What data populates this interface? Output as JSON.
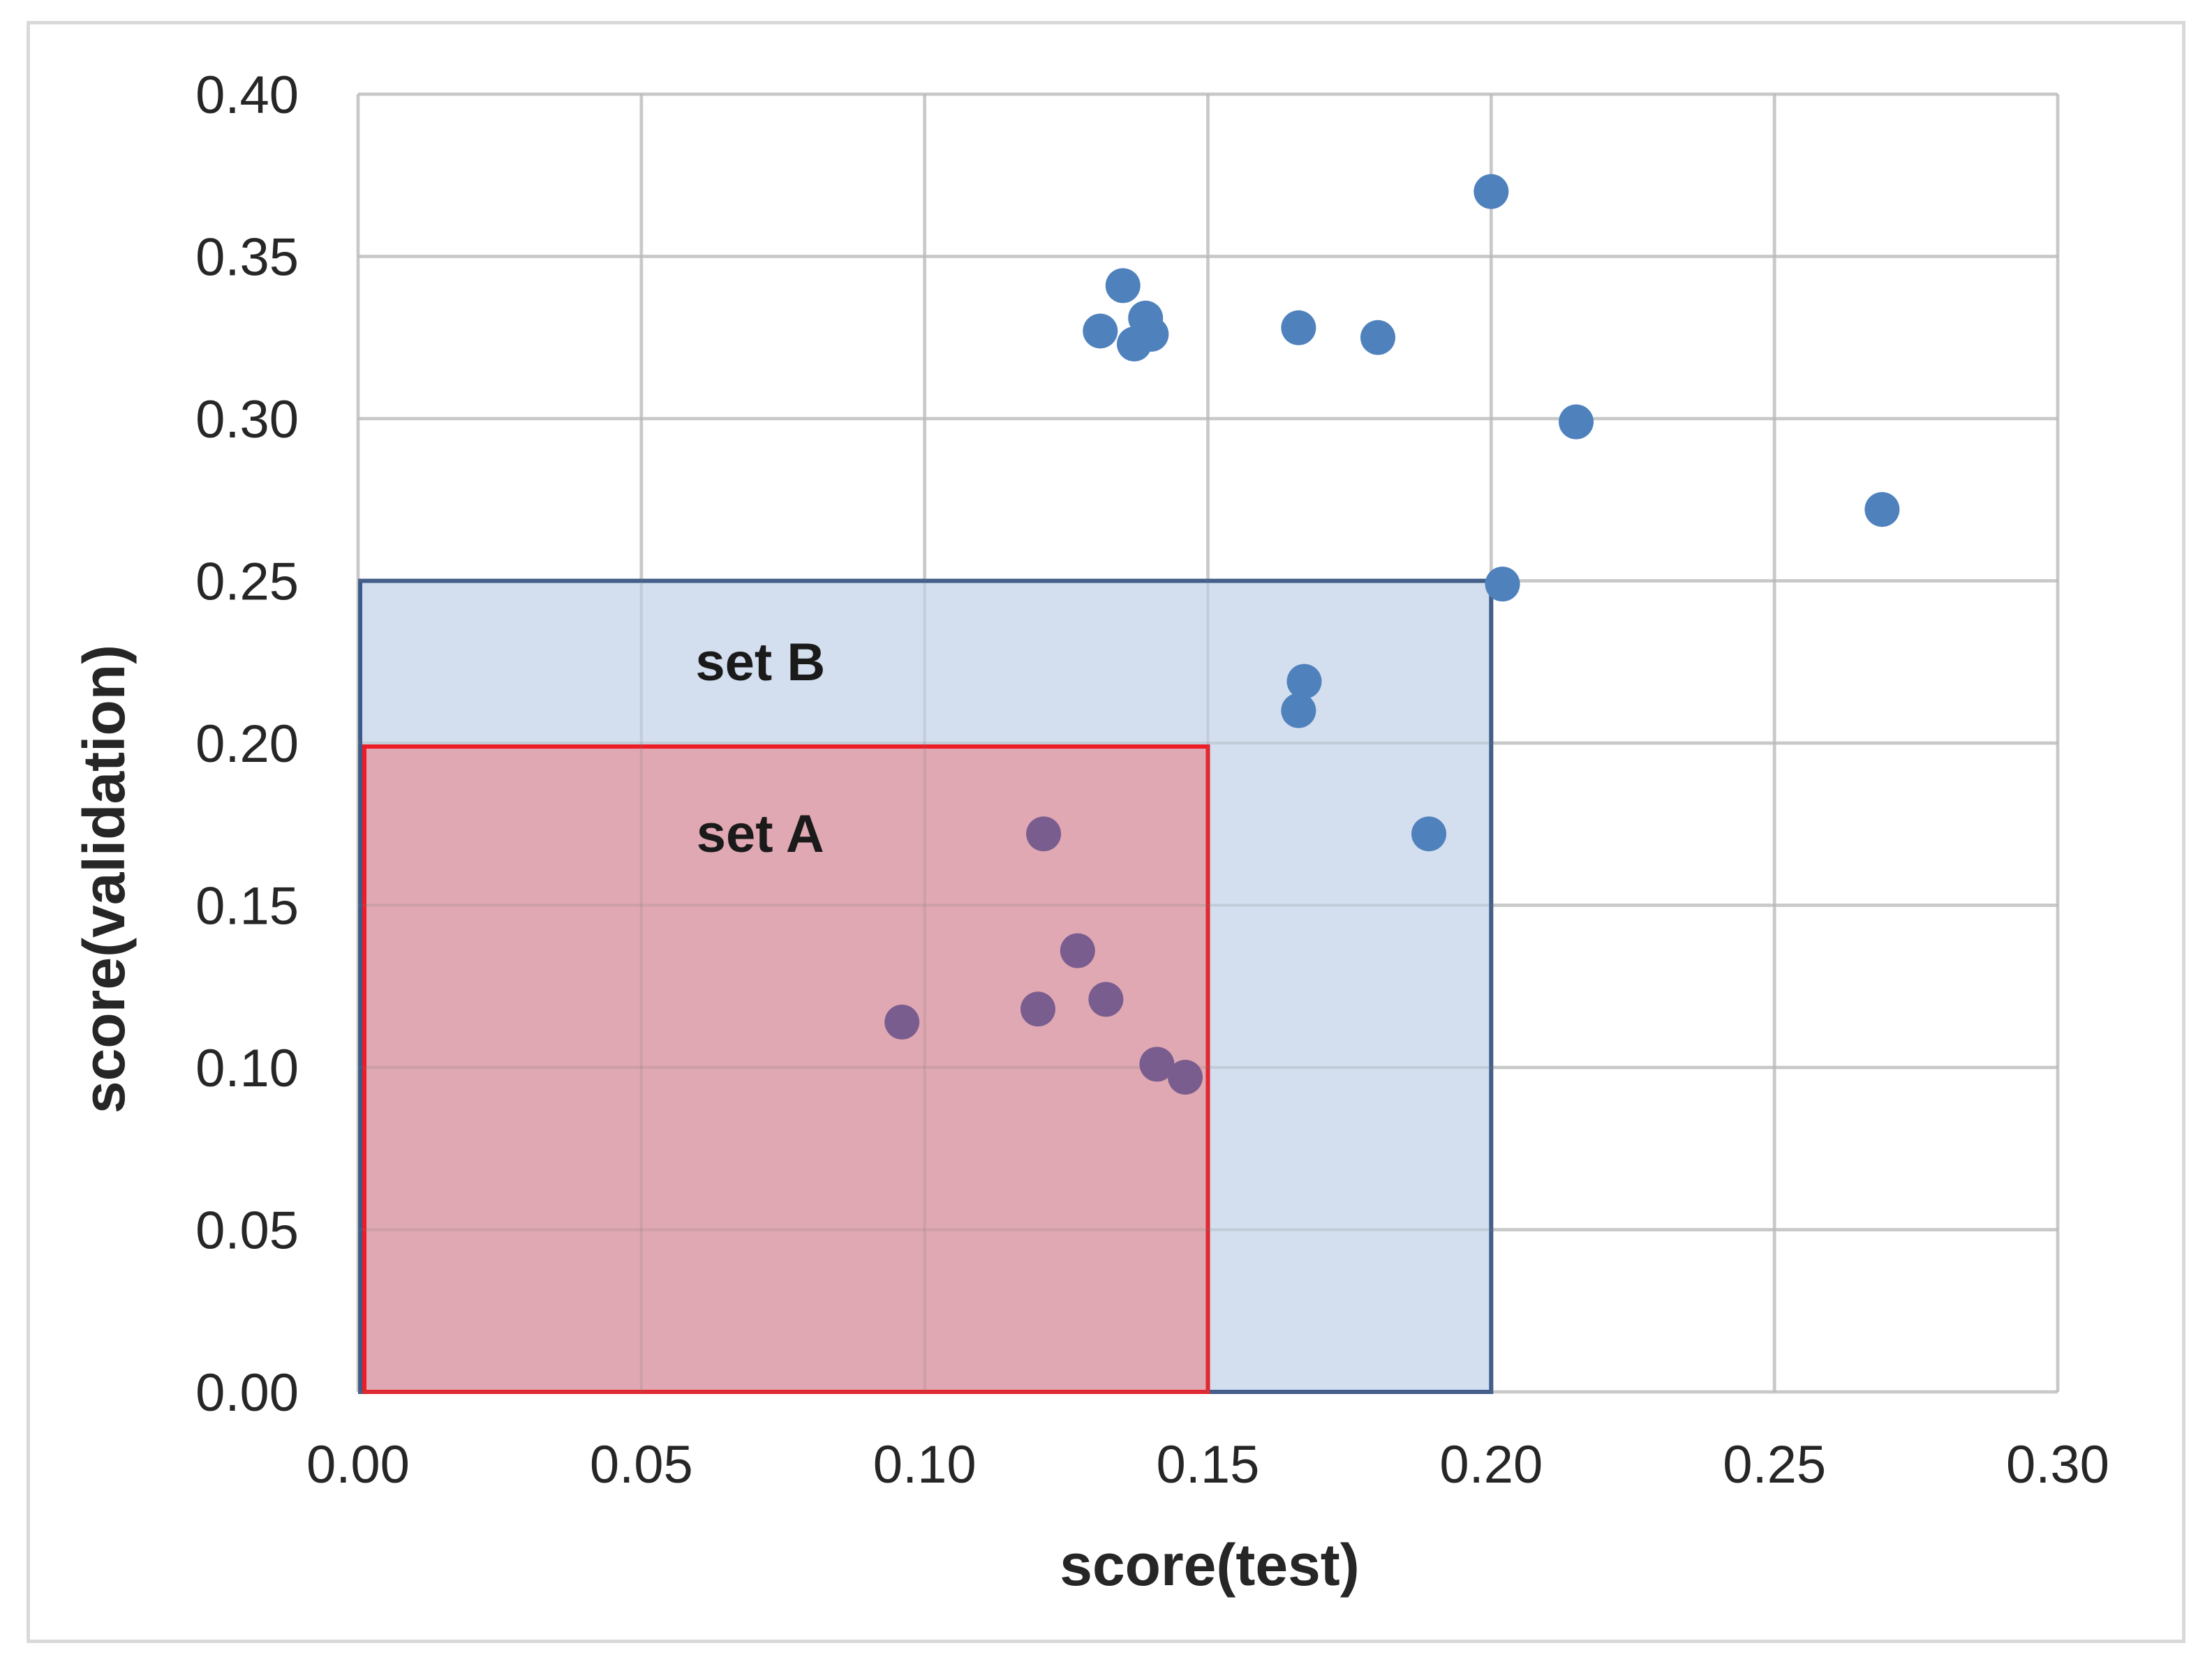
{
  "chart_data": {
    "type": "scatter",
    "xlabel": "score(test)",
    "ylabel": "score(validation)",
    "xlim": [
      0,
      0.3
    ],
    "ylim": [
      0,
      0.4
    ],
    "x_ticks": [
      0.0,
      0.05,
      0.1,
      0.15,
      0.2,
      0.25,
      0.3
    ],
    "y_ticks": [
      0.0,
      0.05,
      0.1,
      0.15,
      0.2,
      0.25,
      0.3,
      0.35,
      0.4
    ],
    "x_tick_labels": [
      "0.00",
      "0.05",
      "0.10",
      "0.15",
      "0.20",
      "0.25",
      "0.30"
    ],
    "y_tick_labels": [
      "0.00",
      "0.05",
      "0.10",
      "0.15",
      "0.20",
      "0.25",
      "0.30",
      "0.35",
      "0.40"
    ],
    "grid": true,
    "marker_color": "#4f81bd",
    "points": [
      {
        "x": 0.2,
        "y": 0.37
      },
      {
        "x": 0.135,
        "y": 0.341
      },
      {
        "x": 0.139,
        "y": 0.331
      },
      {
        "x": 0.131,
        "y": 0.327
      },
      {
        "x": 0.137,
        "y": 0.323
      },
      {
        "x": 0.14,
        "y": 0.326
      },
      {
        "x": 0.166,
        "y": 0.328
      },
      {
        "x": 0.18,
        "y": 0.325
      },
      {
        "x": 0.215,
        "y": 0.299
      },
      {
        "x": 0.269,
        "y": 0.272
      },
      {
        "x": 0.202,
        "y": 0.249
      },
      {
        "x": 0.167,
        "y": 0.219
      },
      {
        "x": 0.166,
        "y": 0.21
      },
      {
        "x": 0.189,
        "y": 0.172
      },
      {
        "x": 0.121,
        "y": 0.172
      },
      {
        "x": 0.127,
        "y": 0.136
      },
      {
        "x": 0.132,
        "y": 0.121
      },
      {
        "x": 0.12,
        "y": 0.118
      },
      {
        "x": 0.096,
        "y": 0.114
      },
      {
        "x": 0.141,
        "y": 0.101
      },
      {
        "x": 0.146,
        "y": 0.097
      }
    ],
    "regions": [
      {
        "label": "set B",
        "x_range": [
          0,
          0.2
        ],
        "y_range": [
          0,
          0.25
        ],
        "fill": "#d3deee",
        "stroke": "#3a5a8c"
      },
      {
        "label": "set A",
        "x_range": [
          0,
          0.15
        ],
        "y_range": [
          0,
          0.2
        ],
        "fill": "#e0a6b0",
        "stroke": "#ee1c25"
      }
    ]
  }
}
